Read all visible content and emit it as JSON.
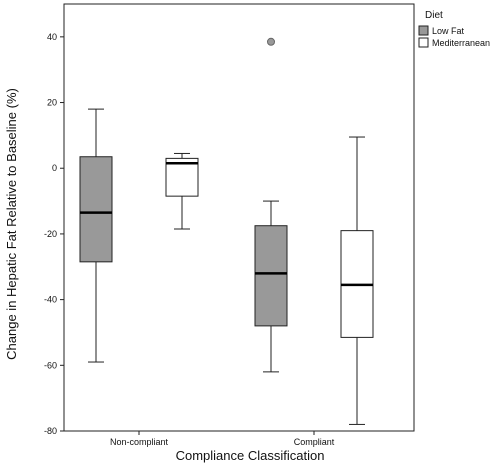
{
  "chart_data": {
    "type": "boxplot",
    "xlabel": "Compliance Classification",
    "ylabel": "Change in Hepatic Fat Relative to Baseline (%)",
    "ylim": [
      -80,
      50
    ],
    "yticks": [
      {
        "value": 40,
        "label": "40"
      },
      {
        "value": 20,
        "label": "20"
      },
      {
        "value": 0,
        "label": "0"
      },
      {
        "value": -20,
        "label": "-20"
      },
      {
        "value": -40,
        "label": "-40"
      },
      {
        "value": -60,
        "label": "-60"
      },
      {
        "value": -80,
        "label": "-80"
      }
    ],
    "categories": [
      "Non-compliant",
      "Compliant"
    ],
    "grid": false,
    "legend": {
      "title": "Diet",
      "position": "top-right",
      "entries": [
        {
          "name": "Low Fat",
          "color": "#999999"
        },
        {
          "name": "Mediterranean",
          "color": "#ffffff"
        }
      ]
    },
    "series": [
      {
        "name": "Low Fat",
        "color": "#999999",
        "boxes": [
          {
            "category": "Non-compliant",
            "min": -59,
            "q1": -28.5,
            "median": -13.5,
            "q3": 3.5,
            "max": 18,
            "outliers": []
          },
          {
            "category": "Compliant",
            "min": -62,
            "q1": -48,
            "median": -32,
            "q3": -17.5,
            "max": -10,
            "outliers": [
              38.5
            ]
          }
        ]
      },
      {
        "name": "Mediterranean",
        "color": "#ffffff",
        "boxes": [
          {
            "category": "Non-compliant",
            "min": -18.5,
            "q1": -8.5,
            "median": 1.5,
            "q3": 3,
            "max": 4.5,
            "outliers": []
          },
          {
            "category": "Compliant",
            "min": -78,
            "q1": -51.5,
            "median": -35.5,
            "q3": -19,
            "max": 9.5,
            "outliers": []
          }
        ]
      }
    ]
  }
}
